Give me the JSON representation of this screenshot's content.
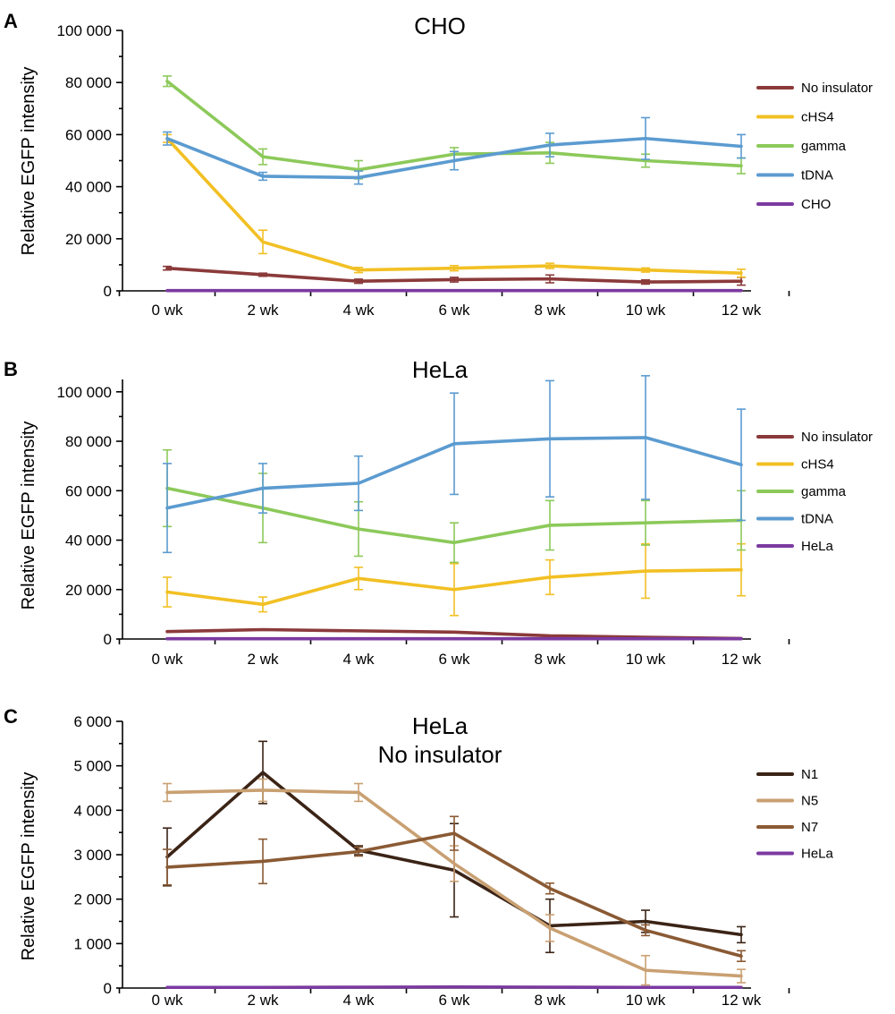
{
  "chart_data": [
    {
      "type": "line",
      "panel": "A",
      "title": "CHO",
      "ylabel": "Relative EGFP intensity",
      "xlabel": "",
      "categories": [
        "0 wk",
        "2 wk",
        "4 wk",
        "6 wk",
        "8 wk",
        "10 wk",
        "12 wk"
      ],
      "ylim": [
        0,
        100000
      ],
      "yticks": [
        0,
        20000,
        40000,
        60000,
        80000,
        100000
      ],
      "ytick_labels": [
        "0",
        "20 000",
        "40 000",
        "60 000",
        "80 000",
        "100 000"
      ],
      "grid": false,
      "legend_placement": "right",
      "series": [
        {
          "name": "No insulator",
          "color": "#8b3a3a",
          "values": [
            8700,
            6200,
            3700,
            4300,
            4600,
            3400,
            3700
          ],
          "errors": [
            700,
            600,
            800,
            900,
            1500,
            800,
            1500
          ]
        },
        {
          "name": "cHS4",
          "color": "#f2c024",
          "values": [
            58500,
            18800,
            8000,
            8700,
            9600,
            8000,
            6800
          ],
          "errors": [
            1500,
            4500,
            1000,
            1000,
            1000,
            800,
            1500
          ]
        },
        {
          "name": "gamma",
          "color": "#8cc95a",
          "values": [
            80500,
            51500,
            46500,
            52500,
            53000,
            50000,
            48000
          ],
          "errors": [
            2000,
            3000,
            3500,
            2500,
            4000,
            2500,
            3000
          ]
        },
        {
          "name": "tDNA",
          "color": "#5b9bd0",
          "values": [
            58500,
            44000,
            43500,
            50000,
            56000,
            58500,
            55500
          ],
          "errors": [
            2500,
            1500,
            2500,
            3500,
            4500,
            8000,
            4500
          ]
        },
        {
          "name": "CHO",
          "color": "#7b3aa0",
          "values": [
            100,
            100,
            100,
            100,
            100,
            100,
            100
          ],
          "errors": [
            0,
            0,
            0,
            0,
            0,
            0,
            0
          ]
        }
      ]
    },
    {
      "type": "line",
      "panel": "B",
      "title": "HeLa",
      "ylabel": "Relative EGFP intensity",
      "xlabel": "",
      "categories": [
        "0 wk",
        "2 wk",
        "4 wk",
        "6 wk",
        "8 wk",
        "10 wk",
        "12 wk"
      ],
      "ylim": [
        0,
        105000
      ],
      "yticks": [
        0,
        20000,
        40000,
        60000,
        80000,
        100000
      ],
      "ytick_labels": [
        "0",
        "20 000",
        "40 000",
        "60 000",
        "80 000",
        "100 000"
      ],
      "grid": false,
      "legend_placement": "right",
      "series": [
        {
          "name": "No insulator",
          "color": "#8b3a3a",
          "values": [
            3000,
            3800,
            3300,
            2800,
            1300,
            700,
            200
          ],
          "errors": [
            0,
            0,
            0,
            0,
            0,
            0,
            0
          ]
        },
        {
          "name": "cHS4",
          "color": "#f2c024",
          "values": [
            19000,
            14000,
            24500,
            20000,
            25000,
            27500,
            28000
          ],
          "errors": [
            6000,
            3000,
            4500,
            10500,
            7000,
            11000,
            10500
          ]
        },
        {
          "name": "gamma",
          "color": "#8cc95a",
          "values": [
            61000,
            53000,
            44500,
            39000,
            46000,
            47000,
            48000
          ],
          "errors": [
            15500,
            14000,
            11000,
            8000,
            10000,
            9000,
            12000
          ]
        },
        {
          "name": "tDNA",
          "color": "#5b9bd0",
          "values": [
            53000,
            61000,
            63000,
            79000,
            81000,
            81500,
            70500
          ],
          "errors": [
            18000,
            10000,
            11000,
            20500,
            23500,
            25000,
            22500
          ]
        },
        {
          "name": "HeLa",
          "color": "#7b3aa0",
          "values": [
            100,
            100,
            100,
            100,
            100,
            100,
            100
          ],
          "errors": [
            0,
            0,
            0,
            0,
            0,
            0,
            0
          ]
        }
      ]
    },
    {
      "type": "line",
      "panel": "C",
      "title": "HeLa",
      "subtitle": "No insulator",
      "ylabel": "Relative EGFP intensity",
      "xlabel": "",
      "categories": [
        "0 wk",
        "2 wk",
        "4 wk",
        "6 wk",
        "8 wk",
        "10 wk",
        "12 wk"
      ],
      "ylim": [
        0,
        6000
      ],
      "yticks": [
        0,
        1000,
        2000,
        3000,
        4000,
        5000,
        6000
      ],
      "ytick_labels": [
        "0",
        "1 000",
        "2 000",
        "3 000",
        "4 000",
        "5 000",
        "6 000"
      ],
      "grid": false,
      "legend_placement": "right",
      "series": [
        {
          "name": "N1",
          "color": "#3b2416",
          "values": [
            2950,
            4850,
            3100,
            2650,
            1400,
            1500,
            1200
          ],
          "errors": [
            650,
            700,
            100,
            1050,
            600,
            250,
            180
          ]
        },
        {
          "name": "N5",
          "color": "#c9a072",
          "values": [
            4400,
            4450,
            4400,
            2800,
            1350,
            400,
            270
          ],
          "errors": [
            200,
            250,
            200,
            400,
            300,
            330,
            150
          ]
        },
        {
          "name": "N7",
          "color": "#8a5a34",
          "values": [
            2720,
            2850,
            3070,
            3480,
            2240,
            1300,
            720
          ],
          "errors": [
            400,
            500,
            100,
            380,
            120,
            120,
            120
          ]
        },
        {
          "name": "HeLa",
          "color": "#7b3aa0",
          "values": [
            15,
            15,
            20,
            25,
            20,
            15,
            15
          ],
          "errors": [
            0,
            0,
            0,
            0,
            0,
            0,
            0
          ]
        }
      ]
    }
  ]
}
